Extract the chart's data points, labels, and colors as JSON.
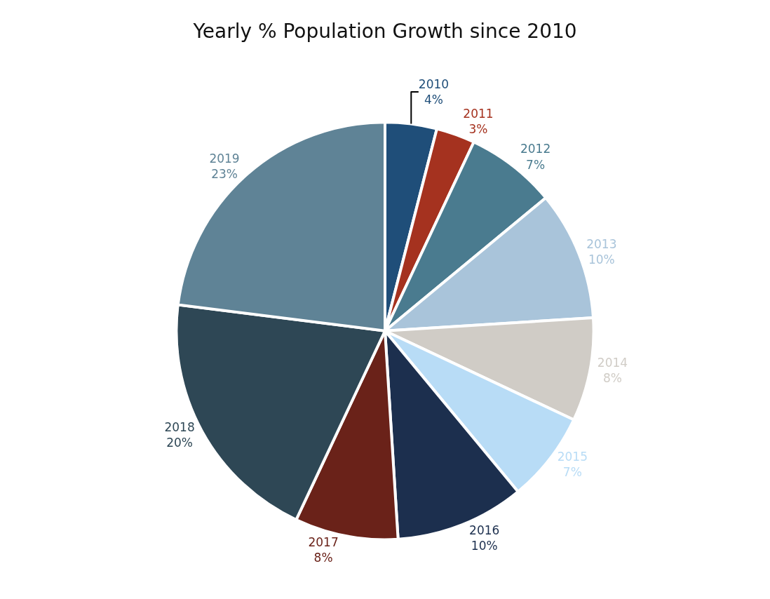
{
  "chart_data": {
    "type": "pie",
    "title": "Yearly % Population Growth since 2010",
    "categories": [
      "2010",
      "2011",
      "2012",
      "2013",
      "2014",
      "2015",
      "2016",
      "2017",
      "2018",
      "2019"
    ],
    "values": [
      4,
      3,
      7,
      10,
      8,
      7,
      10,
      8,
      20,
      23
    ],
    "value_labels": [
      "4%",
      "3%",
      "7%",
      "10%",
      "8%",
      "7%",
      "10%",
      "8%",
      "20%",
      "23%"
    ],
    "colors": [
      "#1f4e79",
      "#a5321f",
      "#4a7b8f",
      "#a9c4da",
      "#d0ccc6",
      "#b8dcf6",
      "#1c2f4e",
      "#6a2219",
      "#2e4755",
      "#5f8396"
    ],
    "legend": false
  }
}
